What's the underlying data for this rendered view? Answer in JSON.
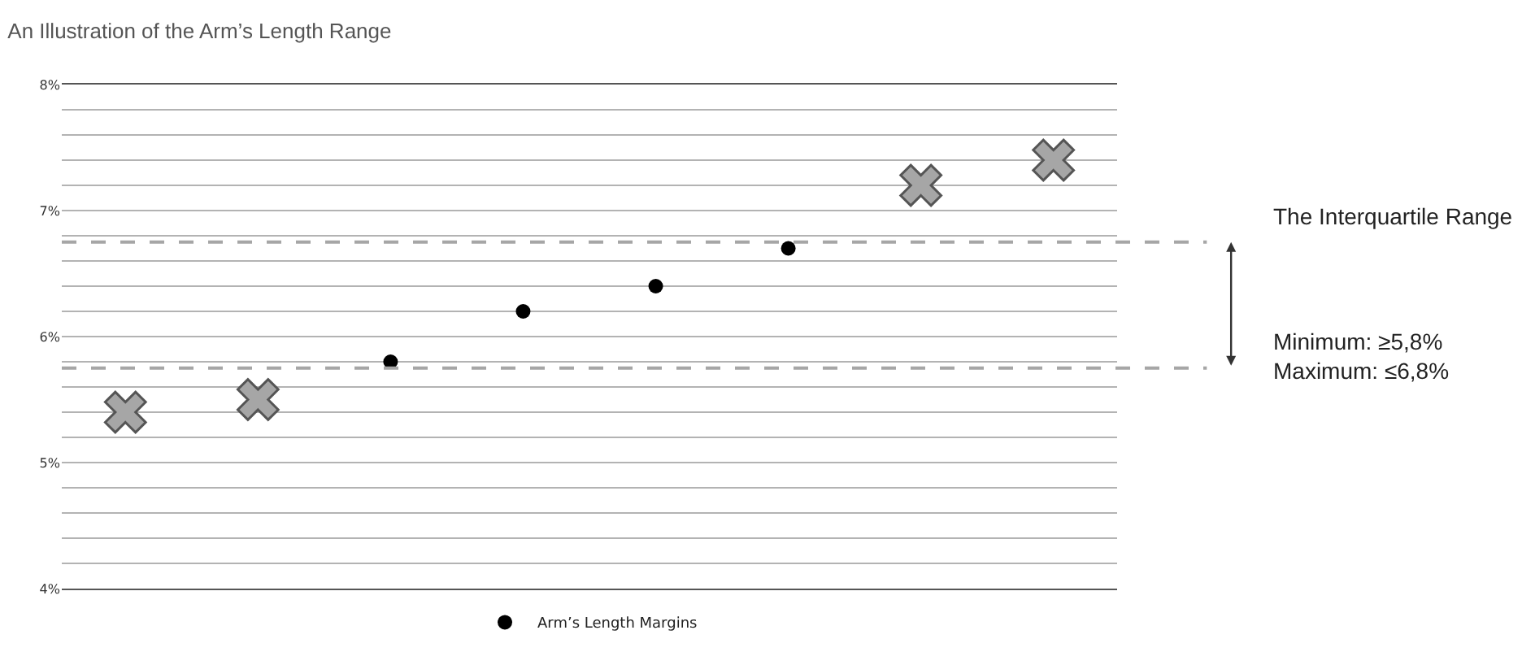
{
  "chart_data": {
    "type": "scatter",
    "title": "An Illustration of the Arm’s Length Range",
    "categories": [
      null,
      null,
      null,
      null,
      null,
      null,
      null,
      null
    ],
    "series": [
      {
        "name": "Arm’s Length Margins",
        "color": "#000000",
        "marker": "circle",
        "values": [
          null,
          null,
          5.8,
          6.2,
          6.4,
          6.7,
          null,
          null
        ]
      },
      {
        "color": "#a6a6a6",
        "marker": "cross",
        "values": [
          5.4,
          5.5,
          null,
          null,
          null,
          null,
          7.2,
          7.4
        ]
      }
    ],
    "ylim": [
      4,
      8
    ],
    "yticks": [
      "4%",
      {
        "value": 4.2,
        "label": null
      },
      {
        "value": 4.4,
        "label": null
      },
      {
        "value": 4.6,
        "label": null
      },
      {
        "value": 4.8,
        "label": null
      },
      {
        "value": 5,
        "label": "5%"
      },
      {
        "value": 5.2,
        "label": null
      },
      {
        "value": 5.4,
        "label": null
      },
      {
        "value": 5.6,
        "label": null
      },
      {
        "value": 5.8,
        "label": null
      },
      {
        "value": 6,
        "label": "6%"
      },
      {
        "value": 6.2,
        "label": null
      },
      {
        "value": 6.4,
        "label": null
      },
      {
        "value": 6.6,
        "label": null
      },
      {
        "value": 6.8,
        "label": null
      },
      {
        "value": 7,
        "label": "7%"
      },
      {
        "value": 7.2,
        "label": null
      },
      {
        "value": 7.4,
        "label": null
      },
      {
        "value": 7.6,
        "label": null
      },
      {
        "value": 7.8,
        "label": null
      },
      {
        "value": 8,
        "label": "8%"
      }
    ],
    "grid": "y",
    "legend": "bottom",
    "tick_labels": "y",
    "ref_lines": [
      {
        "axis": "y",
        "value": 6.75,
        "color": "#a6a6a6",
        "line_style": "dashed"
      },
      {
        "axis": "y",
        "value": 5.75,
        "color": "#a6a6a6",
        "line_style": "dashed"
      }
    ],
    "annotations": [
      "The Interquartile Range",
      "Minimum: ≥5,8%\nMaximum: ≤6,8%"
    ]
  }
}
